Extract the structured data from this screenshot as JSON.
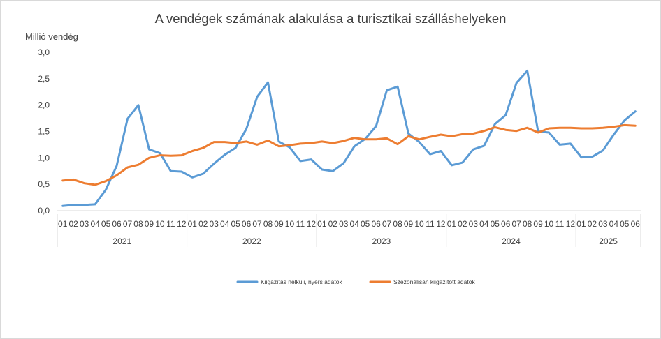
{
  "chart_data": {
    "type": "line",
    "title": "A vendégek számának alakulása a turisztikai szálláshelyeken",
    "ylabel": "Millió vendég",
    "ylim": [
      0,
      3
    ],
    "y_ticks": [
      "0,0",
      "0,5",
      "1,0",
      "1,5",
      "2,0",
      "2,5",
      "3,0"
    ],
    "grid": false,
    "legend_position": "bottom",
    "years": [
      {
        "label": "2021",
        "count": 12
      },
      {
        "label": "2022",
        "count": 12
      },
      {
        "label": "2023",
        "count": 12
      },
      {
        "label": "2024",
        "count": 12
      },
      {
        "label": "2025",
        "count": 6
      }
    ],
    "categories": [
      "01",
      "02",
      "03",
      "04",
      "05",
      "06",
      "07",
      "08",
      "09",
      "10",
      "11",
      "12",
      "01",
      "02",
      "03",
      "04",
      "05",
      "06",
      "07",
      "08",
      "09",
      "10",
      "11",
      "12",
      "01",
      "02",
      "03",
      "04",
      "05",
      "06",
      "07",
      "08",
      "09",
      "10",
      "11",
      "12",
      "01",
      "02",
      "03",
      "04",
      "05",
      "06",
      "07",
      "08",
      "09",
      "10",
      "11",
      "12",
      "01",
      "02",
      "03",
      "04",
      "05",
      "06"
    ],
    "series": [
      {
        "name": "Kiigazítás nélküli, nyers adatok",
        "color": "#5B9BD5",
        "values": [
          0.09,
          0.11,
          0.11,
          0.12,
          0.4,
          0.85,
          1.74,
          2.0,
          1.16,
          1.09,
          0.75,
          0.74,
          0.63,
          0.7,
          0.89,
          1.06,
          1.19,
          1.55,
          2.16,
          2.43,
          1.31,
          1.2,
          0.94,
          0.97,
          0.78,
          0.75,
          0.9,
          1.22,
          1.36,
          1.6,
          2.28,
          2.35,
          1.46,
          1.3,
          1.07,
          1.13,
          0.86,
          0.91,
          1.16,
          1.23,
          1.64,
          1.81,
          2.42,
          2.65,
          1.5,
          1.48,
          1.25,
          1.27,
          1.01,
          1.02,
          1.14,
          1.44,
          1.71,
          1.88
        ]
      },
      {
        "name": "Szezonálisan kiigazított adatok",
        "color": "#ED7D31",
        "values": [
          0.57,
          0.59,
          0.52,
          0.49,
          0.56,
          0.67,
          0.82,
          0.87,
          1.0,
          1.05,
          1.04,
          1.05,
          1.13,
          1.19,
          1.3,
          1.3,
          1.28,
          1.31,
          1.25,
          1.33,
          1.22,
          1.24,
          1.27,
          1.28,
          1.31,
          1.28,
          1.32,
          1.38,
          1.35,
          1.35,
          1.37,
          1.26,
          1.41,
          1.35,
          1.4,
          1.44,
          1.41,
          1.45,
          1.46,
          1.51,
          1.58,
          1.53,
          1.51,
          1.57,
          1.48,
          1.56,
          1.57,
          1.57,
          1.56,
          1.56,
          1.57,
          1.59,
          1.62,
          1.61
        ]
      }
    ]
  }
}
